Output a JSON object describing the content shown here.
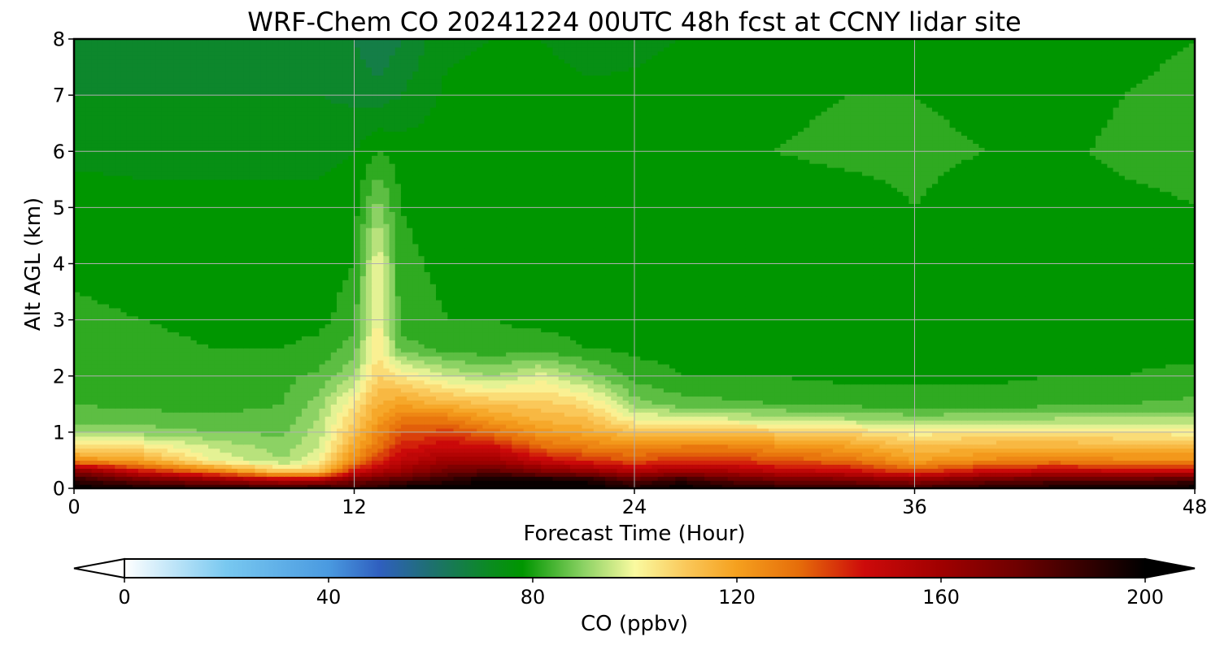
{
  "chart_data": {
    "type": "heatmap",
    "title": "WRF-Chem CO  20241224 00UTC 48h fcst at CCNY lidar site",
    "xlabel": "Forecast Time (Hour)",
    "ylabel": "Alt AGL (km)",
    "xlim": [
      0,
      48
    ],
    "ylim": [
      0,
      8
    ],
    "xticks": [
      0,
      12,
      24,
      36,
      48
    ],
    "yticks": [
      0,
      1,
      2,
      3,
      4,
      5,
      6,
      7,
      8
    ],
    "grid": true,
    "colorbar": {
      "label": "CO  (ppbv)",
      "min": 0,
      "max": 200,
      "ticks": [
        0,
        40,
        80,
        120,
        160,
        200
      ],
      "extend": "both",
      "orientation": "horizontal",
      "stops": [
        {
          "value": 0,
          "color": "#ffffff"
        },
        {
          "value": 20,
          "color": "#78c8f0"
        },
        {
          "value": 40,
          "color": "#4a9ae0"
        },
        {
          "value": 50,
          "color": "#2f5fbf"
        },
        {
          "value": 60,
          "color": "#1e7070"
        },
        {
          "value": 72,
          "color": "#0a8c1e"
        },
        {
          "value": 78,
          "color": "#009600"
        },
        {
          "value": 90,
          "color": "#8cd264"
        },
        {
          "value": 100,
          "color": "#fafaa0"
        },
        {
          "value": 110,
          "color": "#fac85a"
        },
        {
          "value": 120,
          "color": "#f5a01e"
        },
        {
          "value": 132,
          "color": "#e66e0a"
        },
        {
          "value": 145,
          "color": "#cd0a0a"
        },
        {
          "value": 160,
          "color": "#a00000"
        },
        {
          "value": 175,
          "color": "#6e0000"
        },
        {
          "value": 190,
          "color": "#2d0000"
        },
        {
          "value": 200,
          "color": "#000000"
        }
      ]
    },
    "grid_hours": [
      0,
      3,
      6,
      9,
      10.5,
      12,
      13,
      14,
      16,
      18,
      20,
      22,
      24,
      26,
      28,
      30,
      33,
      36,
      39,
      42,
      45,
      48
    ],
    "grid_alts_km": [
      0,
      0.15,
      0.3,
      0.5,
      0.75,
      1.0,
      1.25,
      1.5,
      2.0,
      2.5,
      3.0,
      4.0,
      5.0,
      6.0,
      7.0,
      8.0
    ],
    "values_ppbv": [
      [
        200,
        196,
        192,
        192,
        194,
        185,
        190,
        200,
        200,
        200,
        200,
        200,
        195,
        200,
        195,
        192,
        190,
        188,
        193,
        196,
        196,
        200
      ],
      [
        190,
        175,
        165,
        152,
        155,
        175,
        178,
        182,
        190,
        200,
        198,
        195,
        180,
        190,
        180,
        175,
        172,
        165,
        175,
        180,
        180,
        185
      ],
      [
        170,
        145,
        130,
        110,
        112,
        145,
        155,
        162,
        175,
        180,
        170,
        165,
        155,
        162,
        158,
        152,
        148,
        138,
        148,
        152,
        150,
        150
      ],
      [
        125,
        118,
        100,
        92,
        100,
        125,
        140,
        150,
        160,
        160,
        148,
        140,
        135,
        140,
        140,
        135,
        132,
        120,
        125,
        128,
        125,
        125
      ],
      [
        105,
        104,
        95,
        90,
        96,
        118,
        130,
        142,
        148,
        145,
        132,
        128,
        125,
        128,
        128,
        124,
        120,
        112,
        115,
        116,
        114,
        114
      ],
      [
        90,
        90,
        88,
        87,
        94,
        112,
        125,
        135,
        138,
        130,
        122,
        118,
        112,
        112,
        112,
        110,
        108,
        102,
        104,
        104,
        103,
        102
      ],
      [
        86,
        86,
        85,
        86,
        92,
        108,
        120,
        128,
        128,
        120,
        115,
        112,
        100,
        98,
        96,
        94,
        92,
        90,
        91,
        92,
        92,
        92
      ],
      [
        84,
        83,
        82,
        84,
        90,
        104,
        116,
        120,
        115,
        112,
        110,
        106,
        90,
        86,
        85,
        84,
        83,
        82,
        82,
        83,
        84,
        85
      ],
      [
        82,
        81,
        81,
        83,
        85,
        92,
        108,
        104,
        96,
        92,
        98,
        90,
        82,
        80,
        80,
        80,
        79,
        79,
        79,
        80,
        80,
        81
      ],
      [
        82,
        81,
        80,
        80,
        81,
        86,
        104,
        86,
        82,
        81,
        82,
        80,
        79,
        79,
        78,
        78,
        78,
        78,
        78,
        78,
        79,
        79
      ],
      [
        81,
        80,
        79,
        79,
        79,
        82,
        102,
        82,
        80,
        80,
        79,
        78,
        78,
        78,
        78,
        78,
        78,
        78,
        78,
        78,
        78,
        78
      ],
      [
        79,
        78,
        78,
        78,
        78,
        80,
        100,
        81,
        79,
        80,
        79,
        78,
        78,
        77,
        77,
        78,
        78,
        78,
        78,
        78,
        78,
        77
      ],
      [
        78,
        77,
        77,
        77,
        77,
        78,
        90,
        80,
        78,
        79,
        80,
        78,
        78,
        79,
        78,
        77,
        78,
        80,
        78,
        77,
        79,
        80
      ],
      [
        75,
        75,
        75,
        75,
        75,
        76,
        80,
        78,
        78,
        79,
        80,
        78,
        78,
        79,
        79,
        80,
        81,
        81,
        80,
        79,
        81,
        81
      ],
      [
        72,
        72,
        72,
        72,
        72,
        71,
        70,
        72,
        77,
        78,
        78,
        77,
        77,
        78,
        78,
        79,
        80,
        80,
        79,
        78,
        80,
        82
      ],
      [
        72,
        71,
        71,
        71,
        71,
        68,
        64,
        68,
        75,
        76,
        76,
        74,
        75,
        76,
        77,
        77,
        77,
        77,
        76,
        76,
        78,
        80
      ]
    ]
  }
}
